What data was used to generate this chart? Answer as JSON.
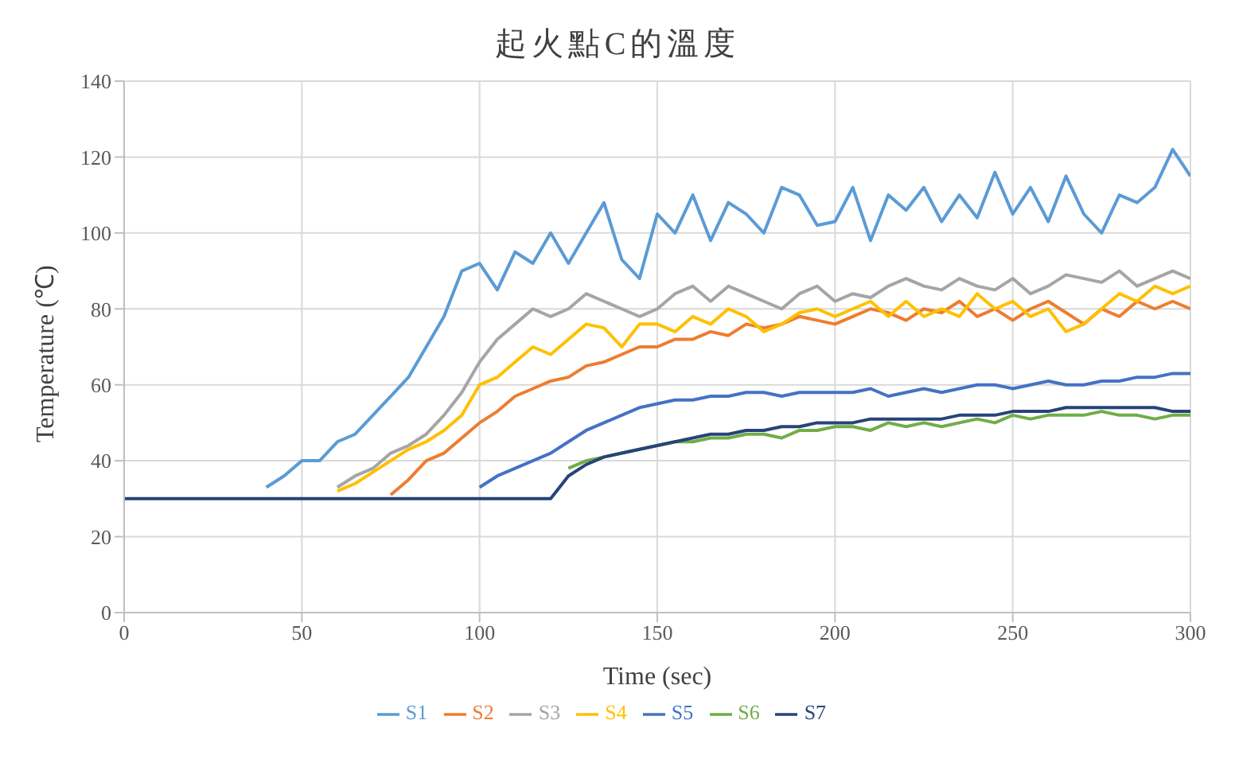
{
  "chart_data": {
    "type": "line",
    "title": "起火點C的溫度",
    "xlabel": "Time (sec)",
    "ylabel": "Temperature (℃)",
    "x": [
      0,
      5,
      10,
      15,
      20,
      25,
      30,
      35,
      40,
      45,
      50,
      55,
      60,
      65,
      70,
      75,
      80,
      85,
      90,
      95,
      100,
      105,
      110,
      115,
      120,
      125,
      130,
      135,
      140,
      145,
      150,
      155,
      160,
      165,
      170,
      175,
      180,
      185,
      190,
      195,
      200,
      205,
      210,
      215,
      220,
      225,
      230,
      235,
      240,
      245,
      250,
      255,
      260,
      265,
      270,
      275,
      280,
      285,
      290,
      295,
      300
    ],
    "series": [
      {
        "name": "S1",
        "color": "#5b9bd5",
        "values": [
          null,
          null,
          null,
          null,
          null,
          null,
          null,
          null,
          33,
          36,
          40,
          40,
          45,
          47,
          52,
          57,
          62,
          70,
          78,
          90,
          92,
          85,
          95,
          92,
          100,
          92,
          100,
          108,
          93,
          88,
          105,
          100,
          110,
          98,
          108,
          105,
          100,
          112,
          110,
          102,
          103,
          112,
          98,
          110,
          106,
          112,
          103,
          110,
          104,
          116,
          105,
          112,
          103,
          115,
          105,
          100,
          110,
          108,
          112,
          122,
          115
        ]
      },
      {
        "name": "S2",
        "color": "#ed7d31",
        "values": [
          null,
          null,
          null,
          null,
          null,
          null,
          null,
          null,
          null,
          null,
          null,
          null,
          null,
          null,
          null,
          31,
          35,
          40,
          42,
          46,
          50,
          53,
          57,
          59,
          61,
          62,
          65,
          66,
          68,
          70,
          70,
          72,
          72,
          74,
          73,
          76,
          75,
          76,
          78,
          77,
          76,
          78,
          80,
          79,
          77,
          80,
          79,
          82,
          78,
          80,
          77,
          80,
          82,
          79,
          76,
          80,
          78,
          82,
          80,
          82,
          80
        ]
      },
      {
        "name": "S3",
        "color": "#a5a5a5",
        "values": [
          null,
          null,
          null,
          null,
          null,
          null,
          null,
          null,
          null,
          null,
          null,
          null,
          33,
          36,
          38,
          42,
          44,
          47,
          52,
          58,
          66,
          72,
          76,
          80,
          78,
          80,
          84,
          82,
          80,
          78,
          80,
          84,
          86,
          82,
          86,
          84,
          82,
          80,
          84,
          86,
          82,
          84,
          83,
          86,
          88,
          86,
          85,
          88,
          86,
          85,
          88,
          84,
          86,
          89,
          88,
          87,
          90,
          86,
          88,
          90,
          88
        ]
      },
      {
        "name": "S4",
        "color": "#ffc000",
        "values": [
          null,
          null,
          null,
          null,
          null,
          null,
          null,
          null,
          null,
          null,
          null,
          null,
          32,
          34,
          37,
          40,
          43,
          45,
          48,
          52,
          60,
          62,
          66,
          70,
          68,
          72,
          76,
          75,
          70,
          76,
          76,
          74,
          78,
          76,
          80,
          78,
          74,
          76,
          79,
          80,
          78,
          80,
          82,
          78,
          82,
          78,
          80,
          78,
          84,
          80,
          82,
          78,
          80,
          74,
          76,
          80,
          84,
          82,
          86,
          84,
          86
        ]
      },
      {
        "name": "S5",
        "color": "#4472c4",
        "values": [
          null,
          null,
          null,
          null,
          null,
          null,
          null,
          null,
          null,
          null,
          null,
          null,
          null,
          null,
          null,
          null,
          null,
          null,
          null,
          null,
          33,
          36,
          38,
          40,
          42,
          45,
          48,
          50,
          52,
          54,
          55,
          56,
          56,
          57,
          57,
          58,
          58,
          57,
          58,
          58,
          58,
          58,
          59,
          57,
          58,
          59,
          58,
          59,
          60,
          60,
          59,
          60,
          61,
          60,
          60,
          61,
          61,
          62,
          62,
          63,
          63
        ]
      },
      {
        "name": "S6",
        "color": "#70ad47",
        "values": [
          null,
          null,
          null,
          null,
          null,
          null,
          null,
          null,
          null,
          null,
          null,
          null,
          null,
          null,
          null,
          null,
          null,
          null,
          null,
          null,
          null,
          null,
          null,
          null,
          null,
          38,
          40,
          41,
          42,
          43,
          44,
          45,
          45,
          46,
          46,
          47,
          47,
          46,
          48,
          48,
          49,
          49,
          48,
          50,
          49,
          50,
          49,
          50,
          51,
          50,
          52,
          51,
          52,
          52,
          52,
          53,
          52,
          52,
          51,
          52,
          52
        ]
      },
      {
        "name": "S7",
        "color": "#264478",
        "values": [
          30,
          30,
          30,
          30,
          30,
          30,
          30,
          30,
          30,
          30,
          30,
          30,
          30,
          30,
          30,
          30,
          30,
          30,
          30,
          30,
          30,
          30,
          30,
          30,
          30,
          36,
          39,
          41,
          42,
          43,
          44,
          45,
          46,
          47,
          47,
          48,
          48,
          49,
          49,
          50,
          50,
          50,
          51,
          51,
          51,
          51,
          51,
          52,
          52,
          52,
          53,
          53,
          53,
          54,
          54,
          54,
          54,
          54,
          54,
          53,
          53
        ]
      }
    ],
    "xlim": [
      0,
      300
    ],
    "xticks": [
      0,
      50,
      100,
      150,
      200,
      250,
      300
    ],
    "ylim": [
      0,
      140
    ],
    "yticks": [
      0,
      20,
      40,
      60,
      80,
      100,
      120,
      140
    ],
    "grid": true,
    "legend": "bottom",
    "marker": "none",
    "line_style": "solid"
  }
}
